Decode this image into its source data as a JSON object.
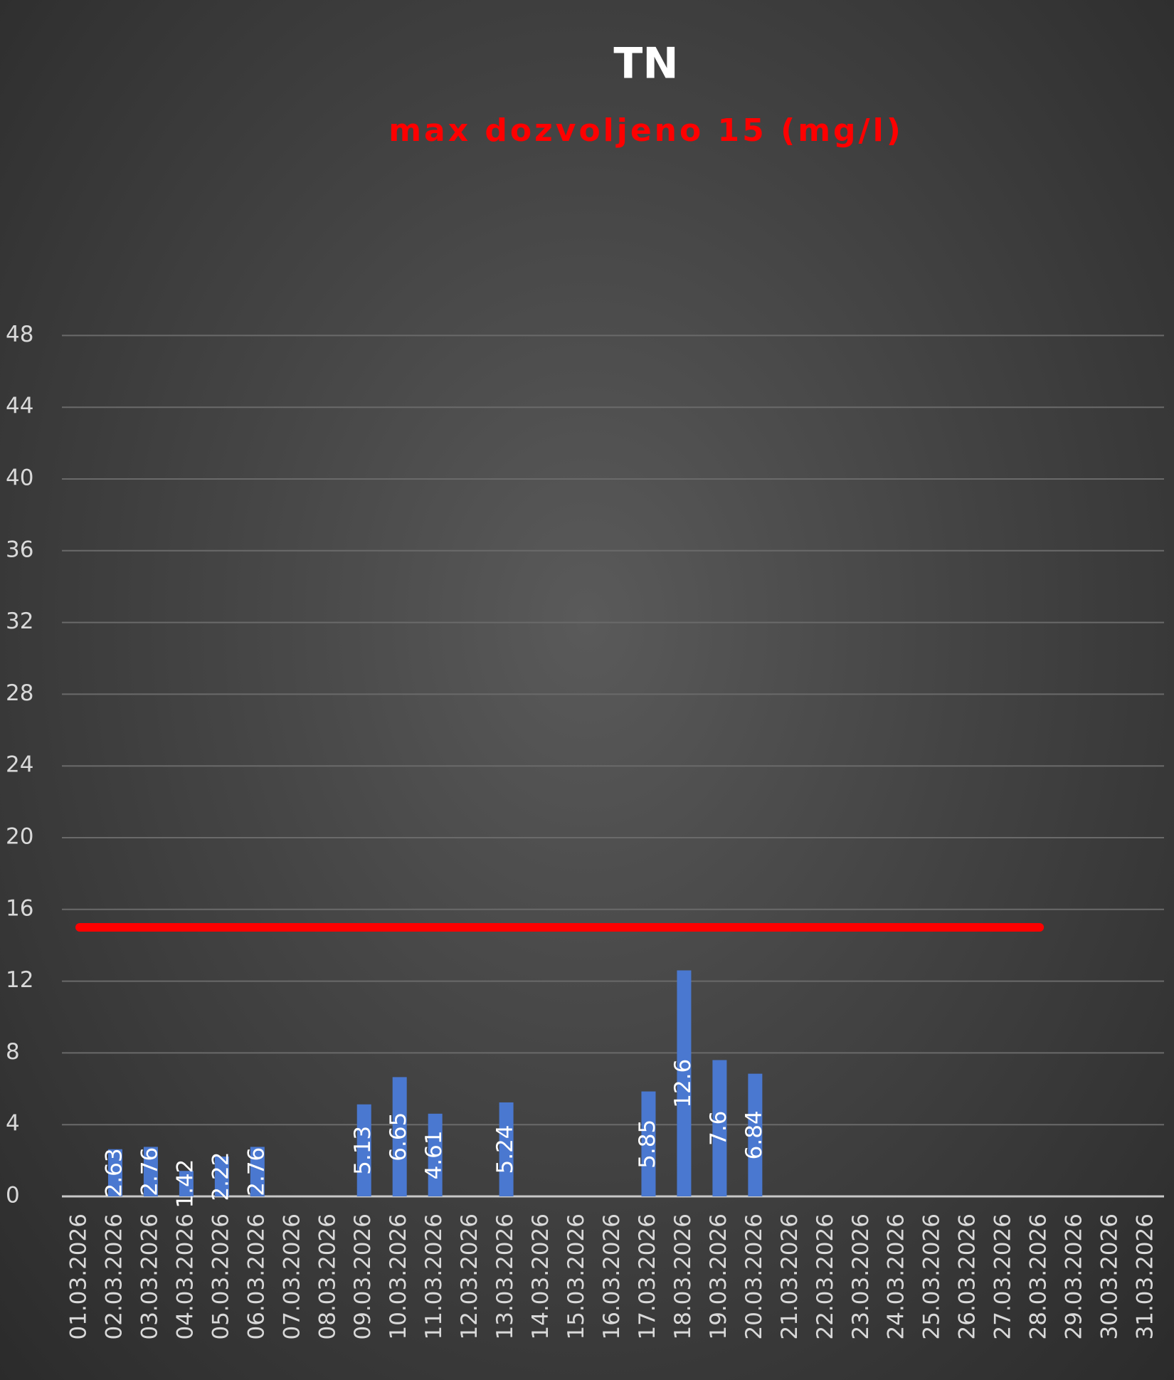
{
  "chart_data": {
    "type": "bar",
    "title": "TN",
    "subtitle": "max dozvoljeno 15 (mg/l)",
    "categories": [
      "01.03.2026",
      "02.03.2026",
      "03.03.2026",
      "04.03.2026",
      "05.03.2026",
      "06.03.2026",
      "07.03.2026",
      "08.03.2026",
      "09.03.2026",
      "10.03.2026",
      "11.03.2026",
      "12.03.2026",
      "13.03.2026",
      "14.03.2026",
      "15.03.2026",
      "16.03.2026",
      "17.03.2026",
      "18.03.2026",
      "19.03.2026",
      "20.03.2026",
      "21.03.2026",
      "22.03.2026",
      "23.03.2026",
      "24.03.2026",
      "25.03.2026",
      "26.03.2026",
      "27.03.2026",
      "28.03.2026",
      "29.03.2026",
      "30.03.2026",
      "31.03.2026"
    ],
    "series": [
      {
        "type": "bar",
        "color": "#4a78d0",
        "data_labels": true,
        "values": [
          null,
          2.63,
          2.76,
          1.42,
          2.22,
          2.76,
          null,
          null,
          5.13,
          6.65,
          4.61,
          null,
          5.24,
          null,
          null,
          null,
          5.85,
          12.6,
          7.6,
          6.84,
          null,
          null,
          null,
          null,
          null,
          null,
          null,
          null,
          null,
          null,
          null
        ]
      },
      {
        "type": "line",
        "color": "#ff0000",
        "values": [
          15,
          15,
          15,
          15,
          15,
          15,
          15,
          15,
          15,
          15,
          15,
          15,
          15,
          15,
          15,
          15,
          15,
          15,
          15,
          15,
          15,
          15,
          15,
          15,
          15,
          15,
          15,
          15,
          null,
          null,
          null
        ]
      }
    ],
    "ylim": [
      0,
      50
    ],
    "yticks": [
      0,
      4,
      8,
      12,
      16,
      20,
      24,
      28,
      32,
      36,
      40,
      44,
      48
    ],
    "grid": true
  }
}
